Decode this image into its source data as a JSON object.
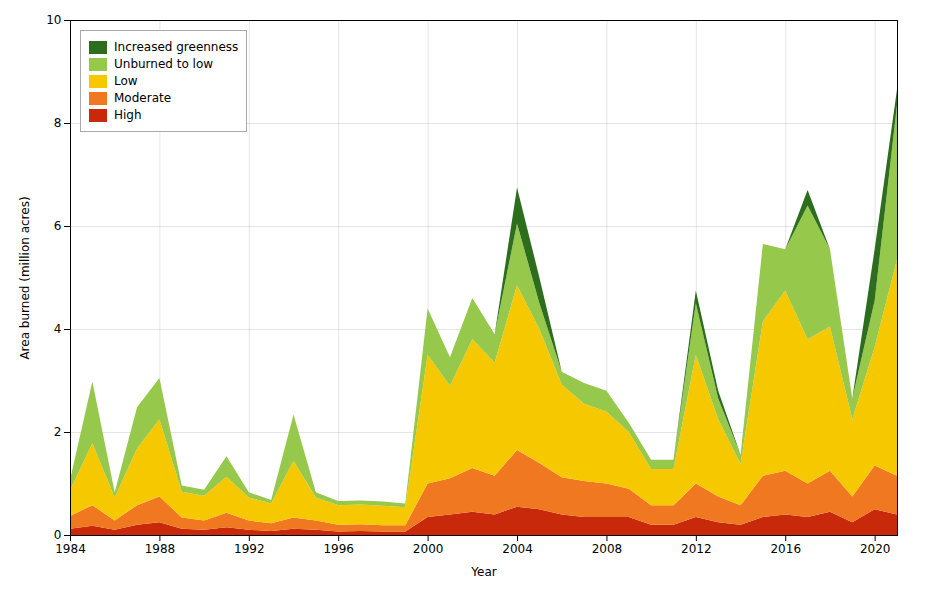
{
  "chart_data": {
    "type": "area",
    "stacked": true,
    "xlabel": "Year",
    "ylabel": "Area burned (million acres)",
    "x": [
      1984,
      1985,
      1986,
      1987,
      1988,
      1989,
      1990,
      1991,
      1992,
      1993,
      1994,
      1995,
      1996,
      1997,
      1998,
      1999,
      2000,
      2001,
      2002,
      2003,
      2004,
      2005,
      2006,
      2007,
      2008,
      2009,
      2010,
      2011,
      2012,
      2013,
      2014,
      2015,
      2016,
      2017,
      2018,
      2019,
      2020,
      2021
    ],
    "series": [
      {
        "name": "High",
        "color": "#c8290a",
        "values": [
          0.12,
          0.18,
          0.1,
          0.2,
          0.25,
          0.12,
          0.1,
          0.15,
          0.1,
          0.08,
          0.12,
          0.1,
          0.07,
          0.08,
          0.07,
          0.07,
          0.35,
          0.4,
          0.45,
          0.4,
          0.55,
          0.5,
          0.4,
          0.35,
          0.35,
          0.35,
          0.2,
          0.2,
          0.35,
          0.25,
          0.2,
          0.35,
          0.4,
          0.35,
          0.45,
          0.25,
          0.5,
          0.4
        ]
      },
      {
        "name": "Moderate",
        "color": "#f07820",
        "values": [
          0.25,
          0.4,
          0.18,
          0.38,
          0.5,
          0.22,
          0.18,
          0.28,
          0.18,
          0.15,
          0.22,
          0.18,
          0.13,
          0.13,
          0.12,
          0.12,
          0.65,
          0.7,
          0.85,
          0.75,
          1.1,
          0.9,
          0.72,
          0.7,
          0.65,
          0.55,
          0.38,
          0.38,
          0.65,
          0.5,
          0.38,
          0.8,
          0.85,
          0.65,
          0.8,
          0.5,
          0.85,
          0.75
        ]
      },
      {
        "name": "Low",
        "color": "#f5c800",
        "values": [
          0.5,
          1.2,
          0.45,
          1.1,
          1.5,
          0.5,
          0.48,
          0.7,
          0.45,
          0.38,
          1.1,
          0.45,
          0.38,
          0.38,
          0.38,
          0.35,
          2.5,
          1.8,
          2.5,
          2.2,
          3.2,
          2.6,
          1.8,
          1.5,
          1.4,
          1.1,
          0.7,
          0.7,
          2.5,
          1.5,
          0.8,
          3.0,
          3.5,
          2.8,
          2.8,
          1.5,
          2.3,
          4.2
        ]
      },
      {
        "name": "Unburned to low",
        "color": "#96c84b",
        "values": [
          0.2,
          1.2,
          0.1,
          0.8,
          0.8,
          0.12,
          0.12,
          0.4,
          0.1,
          0.07,
          0.9,
          0.1,
          0.08,
          0.08,
          0.08,
          0.07,
          0.9,
          0.55,
          0.8,
          0.55,
          1.2,
          0.5,
          0.25,
          0.4,
          0.4,
          0.18,
          0.18,
          0.18,
          1.0,
          0.4,
          0.18,
          1.5,
          0.8,
          2.6,
          1.5,
          0.4,
          0.9,
          3.0
        ]
      },
      {
        "name": "Increased greenness",
        "color": "#2d6e1e",
        "values": [
          0.0,
          0.0,
          0.0,
          0.0,
          0.0,
          0.0,
          0.0,
          0.0,
          0.0,
          0.0,
          0.0,
          0.0,
          0.0,
          0.0,
          0.0,
          0.0,
          0.0,
          0.0,
          0.0,
          0.0,
          0.7,
          0.5,
          0.0,
          0.0,
          0.0,
          0.0,
          0.0,
          0.0,
          0.25,
          0.15,
          0.0,
          0.0,
          0.0,
          0.3,
          0.0,
          0.0,
          1.0,
          0.3
        ]
      }
    ],
    "xlim": [
      1984,
      2021
    ],
    "xticks": [
      1984,
      1988,
      1992,
      1996,
      2000,
      2004,
      2008,
      2012,
      2016,
      2020
    ],
    "ylim": [
      0,
      10
    ],
    "yticks": [
      0,
      2,
      4,
      6,
      8,
      10
    ],
    "grid": true,
    "legend": "upper left"
  }
}
